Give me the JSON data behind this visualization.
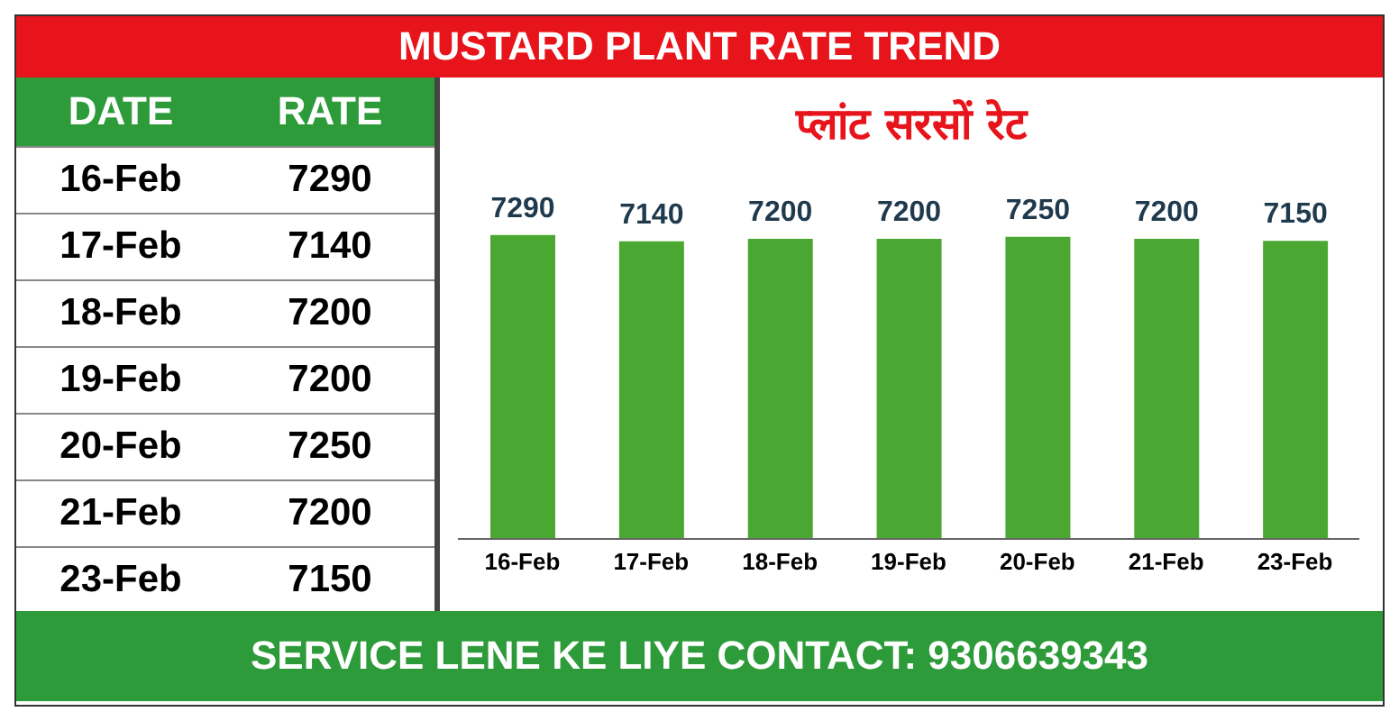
{
  "chart_data": [
    {
      "type": "other",
      "title": "MUSTARD PLANT RATE TREND",
      "annotations": [
        "DATE",
        "RATE"
      ],
      "categories": [
        "16-Feb",
        "17-Feb",
        "18-Feb",
        "19-Feb",
        "20-Feb",
        "21-Feb",
        "23-Feb"
      ],
      "values": [
        7290,
        7140,
        7200,
        7200,
        7250,
        7200,
        7150
      ],
      "value_labels": [
        "7290",
        "7140",
        "7200",
        "7200",
        "7250",
        "7200",
        "7150"
      ]
    },
    {
      "type": "bar",
      "title": "प्लांट सरसों रेट",
      "categories": [
        "16-Feb",
        "17-Feb",
        "18-Feb",
        "19-Feb",
        "20-Feb",
        "21-Feb",
        "23-Feb"
      ],
      "values": [
        7290,
        7140,
        7200,
        7200,
        7250,
        7200,
        7150
      ],
      "color": "#4aa832",
      "data_labels": true,
      "annotations": [
        "SERVICE LENE KE LIYE CONTACT: 9306639343"
      ]
    }
  ]
}
